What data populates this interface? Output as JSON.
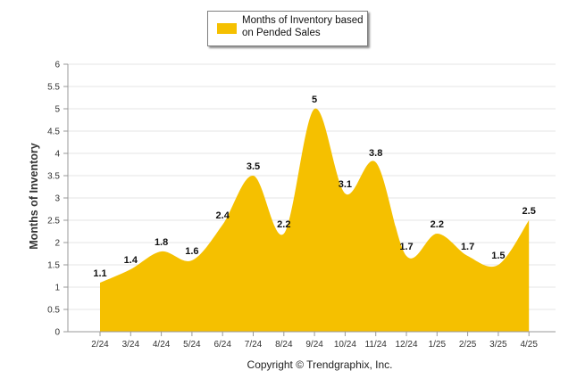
{
  "chart_data": {
    "type": "area",
    "legend_label": "Months of Inventory based on Pended Sales",
    "ylabel": "Months of Inventory",
    "xlabel": "",
    "categories": [
      "2/24",
      "3/24",
      "4/24",
      "5/24",
      "6/24",
      "7/24",
      "8/24",
      "9/24",
      "10/24",
      "11/24",
      "12/24",
      "1/25",
      "2/25",
      "3/25",
      "4/25"
    ],
    "values": [
      1.1,
      1.4,
      1.8,
      1.6,
      2.4,
      3.5,
      2.2,
      5,
      3.1,
      3.8,
      1.7,
      2.2,
      1.7,
      1.5,
      2.5
    ],
    "y_ticks": [
      "0",
      "0.5",
      "1",
      "1.5",
      "2",
      "2.5",
      "3",
      "3.5",
      "4",
      "4.5",
      "5",
      "5.5",
      "6"
    ],
    "ylim": [
      0,
      6
    ],
    "grid": true,
    "legend_position": "top",
    "color": "#f5c000"
  },
  "footer": {
    "copyright": "Copyright © Trendgraphix, Inc."
  }
}
